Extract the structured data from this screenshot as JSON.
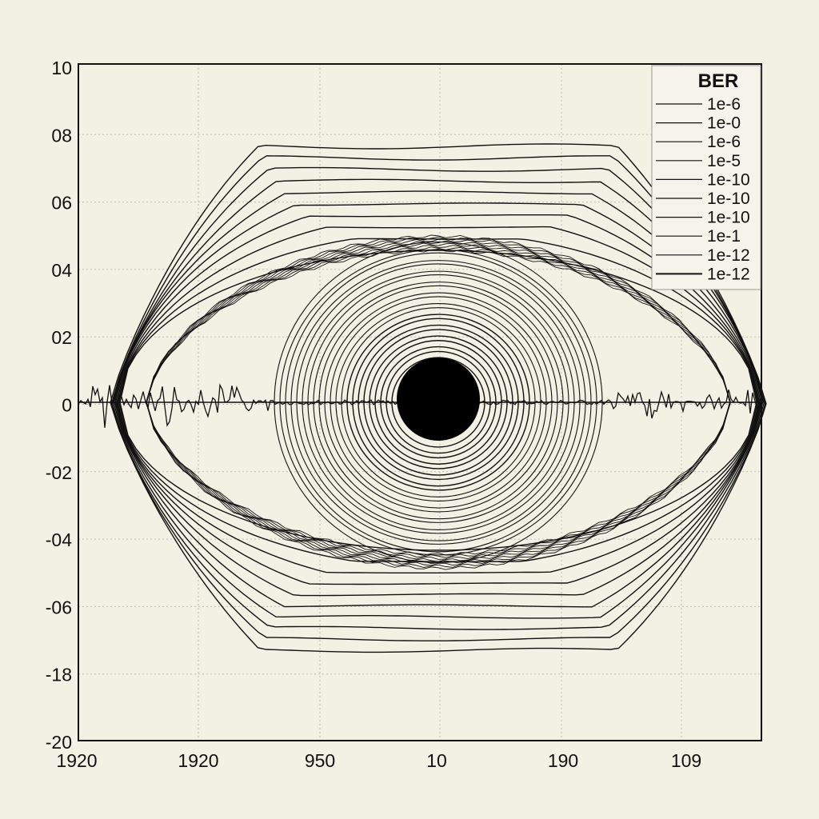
{
  "chart_data": {
    "type": "line",
    "title": "",
    "xlabel": "",
    "ylabel": "",
    "y_tick_labels": [
      "10",
      "08",
      "06",
      "04",
      "02",
      "0",
      "-02",
      "-04",
      "-06",
      "-18",
      "-20"
    ],
    "x_tick_labels": [
      "1920",
      "1920",
      "950",
      "10",
      "190",
      "109"
    ],
    "grid": true,
    "legend": {
      "title": "BER",
      "placement": "top-right",
      "entries": [
        "1e-6",
        "1e-0",
        "1e-6",
        "1e-5",
        "1e-10",
        "1e-10",
        "1e-10",
        "1e-1",
        "1e-12",
        "1e-12"
      ]
    },
    "eye_contour_count": 10,
    "colors": {
      "background": "#f3f1e4",
      "ink": "#111111",
      "grid": "#bdbdb0"
    }
  }
}
